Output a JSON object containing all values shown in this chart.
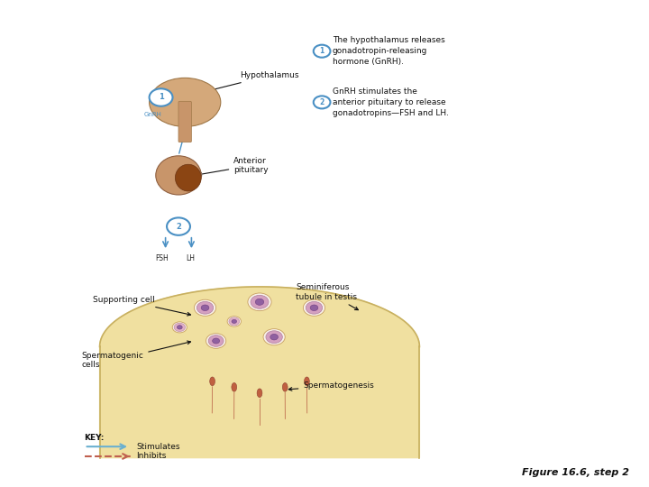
{
  "bg_color": "#ffffff",
  "fig_width": 7.2,
  "fig_height": 5.4,
  "circle_color": "#4a90c4",
  "body_color": "#c9956a",
  "tubule_fill": "#f0e0a0",
  "tubule_edge": "#c8b060",
  "figure_label": "Figure 16.6, step 2",
  "text1_circle": "1",
  "text1_body": "The hypothalamus releases\ngonadotropin-releasing\nhormone (GnRH).",
  "text2_circle": "2",
  "text2_body": "GnRH stimulates the\nanterior pituitary to release\ngonadotropins—FSH and LH.",
  "hypo_label": "Hypothalamus",
  "pit_label": "Anterior\npituitary",
  "gnrh_label": "GnRH",
  "fsh_label": "FSH",
  "lh_label": "LH",
  "supporting_cell_label": "Supporting cell",
  "seminiferous_label": "Seminiferous\ntubule in testis",
  "spermatogenic_label": "Spermatogenic\ncells",
  "spermatogenesis_label": "Spermatogenesis",
  "key_label": "KEY:",
  "stimulates_label": "Stimulates",
  "inhibits_label": "Inhibits",
  "stimulates_color": "#6ab0d0",
  "inhibits_color": "#c06050"
}
